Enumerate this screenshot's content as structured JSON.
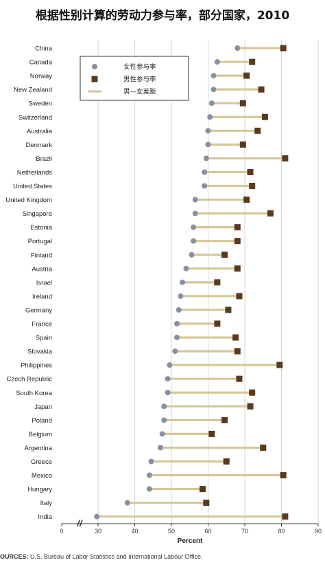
{
  "title": "根据性别计算的劳动力参与率，部分国家，2010",
  "source": {
    "label": "OURCES:",
    "text": " U.S. Bureau of Labor Statistics and International Labour Office."
  },
  "colors": {
    "female": "#8a8f9e",
    "male": "#5a3a1e",
    "gap": "#d6c79a",
    "grid": "#d4d4d4",
    "axis": "#333333"
  },
  "chart_data": {
    "type": "dot-range",
    "xlabel": "Percent",
    "xlim": [
      0,
      90
    ],
    "axis_break": "//",
    "ticks": [
      0,
      30,
      40,
      50,
      60,
      70,
      80,
      90
    ],
    "legend": {
      "position": "top-left",
      "items": [
        {
          "key": "female",
          "label": "女性参与率",
          "marker": "circle"
        },
        {
          "key": "male",
          "label": "男性参与率",
          "marker": "square"
        },
        {
          "key": "gap",
          "label": "男—女差距",
          "marker": "line"
        }
      ]
    },
    "categories": [
      "China",
      "Canada",
      "Norway",
      "New Zealand",
      "Sweden",
      "Switzerland",
      "Australia",
      "Denmark",
      "Brazil",
      "Netherlands",
      "United States",
      "United Kingdom",
      "Singapore",
      "Estonia",
      "Portugal",
      "Finland",
      "Austria",
      "Israel",
      "Ireland",
      "Germany",
      "France",
      "Spain",
      "Slovakia",
      "Philippines",
      "Czech Republic",
      "South Korea",
      "Japan",
      "Poland",
      "Belgium",
      "Argentina",
      "Greece",
      "Mexico",
      "Hungary",
      "Italy",
      "India"
    ],
    "series": [
      {
        "key": "female",
        "name": "女性参与率",
        "values": [
          68,
          62.5,
          61.5,
          61.5,
          61,
          60.5,
          60,
          60,
          59.5,
          59,
          59,
          56.5,
          56.5,
          56,
          56,
          55.5,
          54,
          53,
          52.5,
          52,
          51.5,
          51.5,
          51,
          49.5,
          49,
          49,
          48,
          48,
          47.5,
          47,
          44.5,
          44,
          44,
          38,
          29
        ]
      },
      {
        "key": "male",
        "name": "男性参与率",
        "values": [
          80.5,
          72,
          70.5,
          74.5,
          69.5,
          75.5,
          73.5,
          69.5,
          81,
          71.5,
          72,
          70.5,
          77,
          68,
          68,
          64.5,
          68,
          62.5,
          68.5,
          65.5,
          62.5,
          67.5,
          68,
          79.5,
          68.5,
          72,
          71.5,
          64.5,
          61,
          75,
          65,
          80.5,
          58.5,
          59.5,
          81
        ]
      }
    ]
  }
}
